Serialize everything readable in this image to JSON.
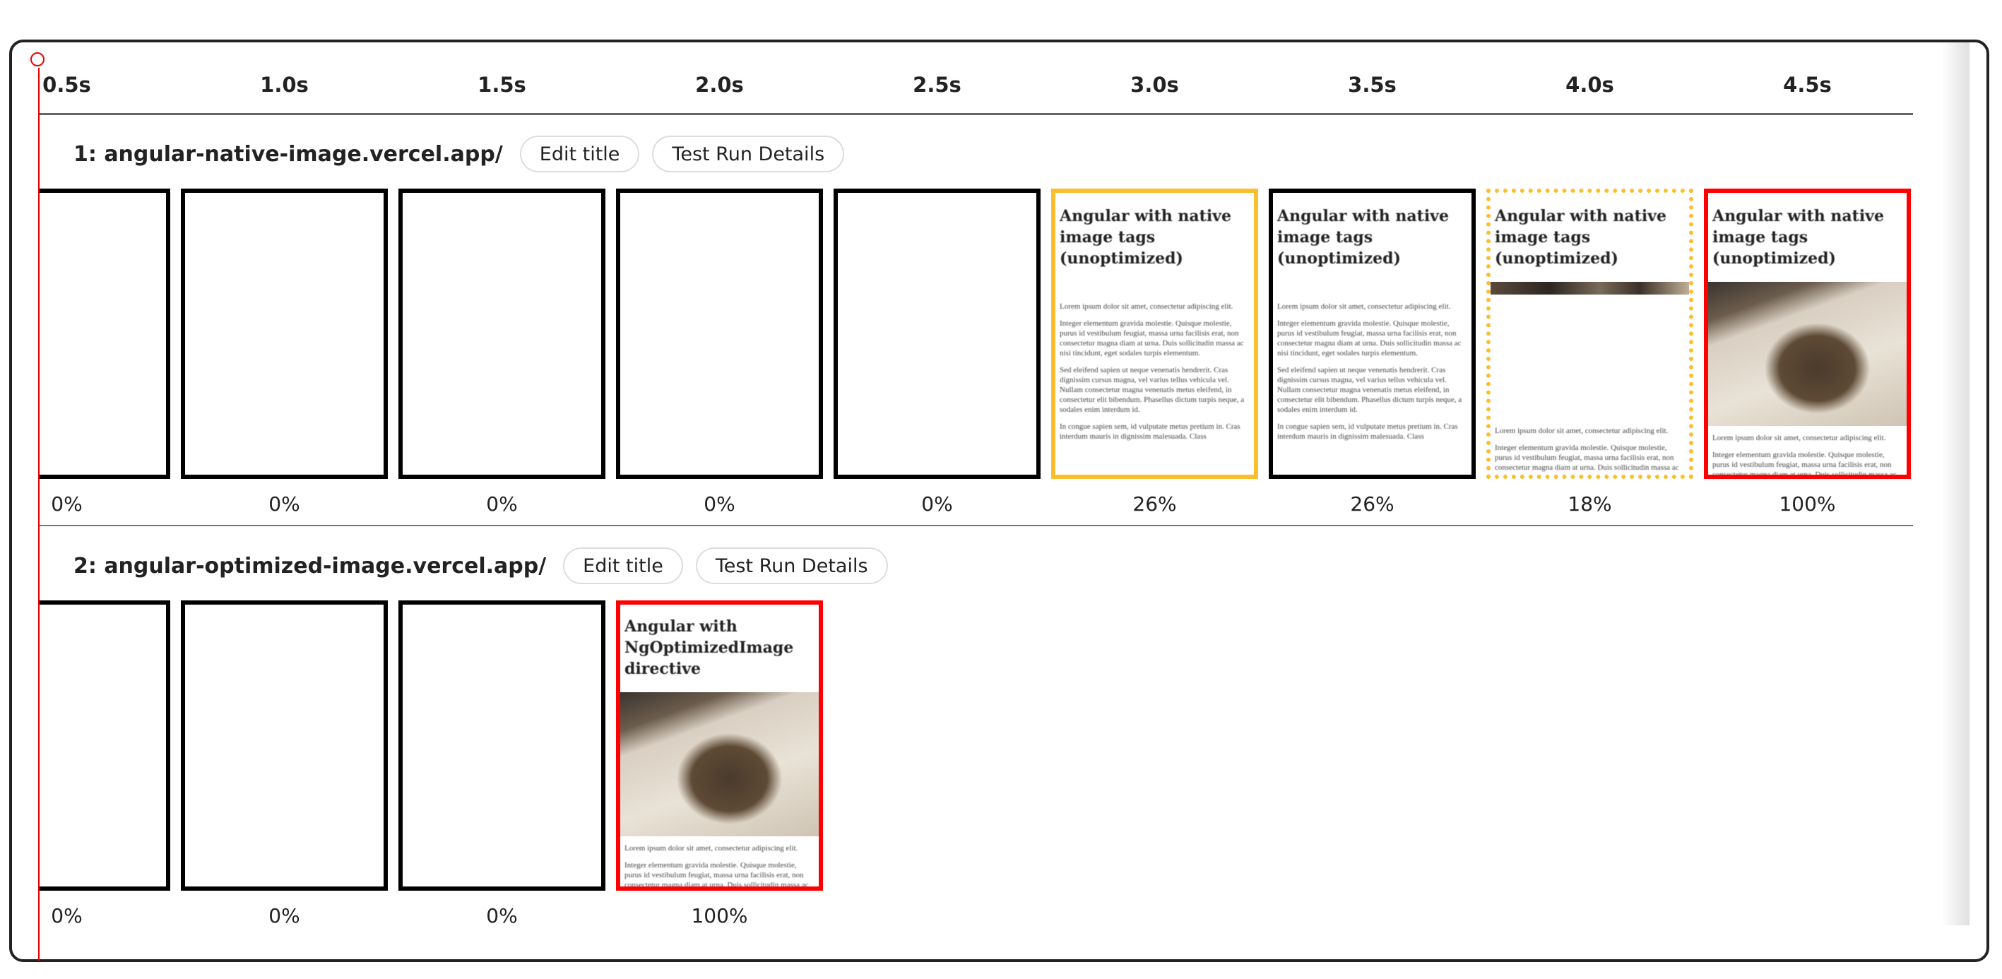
{
  "timeline": {
    "ticks": [
      "0.5s",
      "1.0s",
      "1.5s",
      "2.0s",
      "2.5s",
      "3.0s",
      "3.5s",
      "4.0s",
      "4.5s"
    ]
  },
  "buttons": {
    "edit_title": "Edit title",
    "test_run_details": "Test Run Details"
  },
  "colors": {
    "marker": "#ee0000",
    "visual_change": "#fbbf2e",
    "complete": "#ff0000",
    "frame": "#000000"
  },
  "page_text": {
    "heading_native": "Angular with native image tags (unoptimized)",
    "heading_optimized": "Angular with NgOptimizedImage directive",
    "p1": "Lorem ipsum dolor sit amet, consectetur adipiscing elit.",
    "p2": "Integer elementum gravida molestie. Quisque molestie, purus id vestibulum feugiat, massa urna facilisis erat, non consectetur magna diam at urna. Duis sollicitudin massa ac nisi tincidunt, eget sodales turpis elementum.",
    "p3": "Sed eleifend sapien ut neque venenatis hendrerit. Cras dignissim cursus magna, vel varius tellus vehicula vel. Nullam consectetur magna venenatis metus eleifend, in consectetur elit bibendum. Phasellus dictum turpis neque, a sodales enim interdum id.",
    "p4": "In congue sapien sem, id vulputate metus pretium in. Cras interdum mauris in dignissim malesuada. Class"
  },
  "rows": [
    {
      "title": "1: angular-native-image.vercel.app/",
      "frames": [
        {
          "progress": "0%",
          "border": "black",
          "content": "blank"
        },
        {
          "progress": "0%",
          "border": "black",
          "content": "blank"
        },
        {
          "progress": "0%",
          "border": "black",
          "content": "blank"
        },
        {
          "progress": "0%",
          "border": "black",
          "content": "blank"
        },
        {
          "progress": "0%",
          "border": "black",
          "content": "blank"
        },
        {
          "progress": "26%",
          "border": "yellow",
          "content": "text"
        },
        {
          "progress": "26%",
          "border": "black",
          "content": "text"
        },
        {
          "progress": "18%",
          "border": "yellow-dotted",
          "content": "partial-image"
        },
        {
          "progress": "100%",
          "border": "red",
          "content": "image"
        }
      ]
    },
    {
      "title": "2: angular-optimized-image.vercel.app/",
      "frames": [
        {
          "progress": "0%",
          "border": "black",
          "content": "blank"
        },
        {
          "progress": "0%",
          "border": "black",
          "content": "blank"
        },
        {
          "progress": "0%",
          "border": "black",
          "content": "blank"
        },
        {
          "progress": "100%",
          "border": "red",
          "content": "optimized-image"
        }
      ]
    }
  ]
}
